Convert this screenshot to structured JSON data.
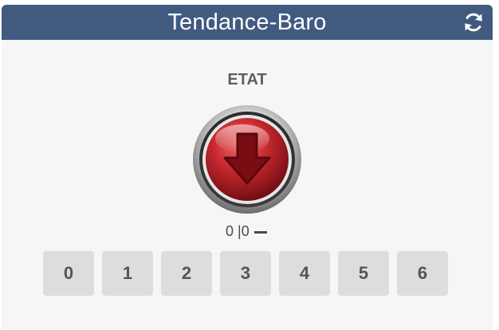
{
  "header": {
    "title": "Tendance-Baro",
    "refresh_icon": "refresh-icon"
  },
  "state": {
    "label": "ETAT",
    "icon": "arrow-down-icon",
    "color": "#c0262d"
  },
  "readout": {
    "value": "0 |0"
  },
  "choices": [
    "0",
    "1",
    "2",
    "3",
    "4",
    "5",
    "6"
  ],
  "colors": {
    "header_bg": "#415a80",
    "panel_bg": "#f6f6f6",
    "button_bg": "#dddddd"
  }
}
